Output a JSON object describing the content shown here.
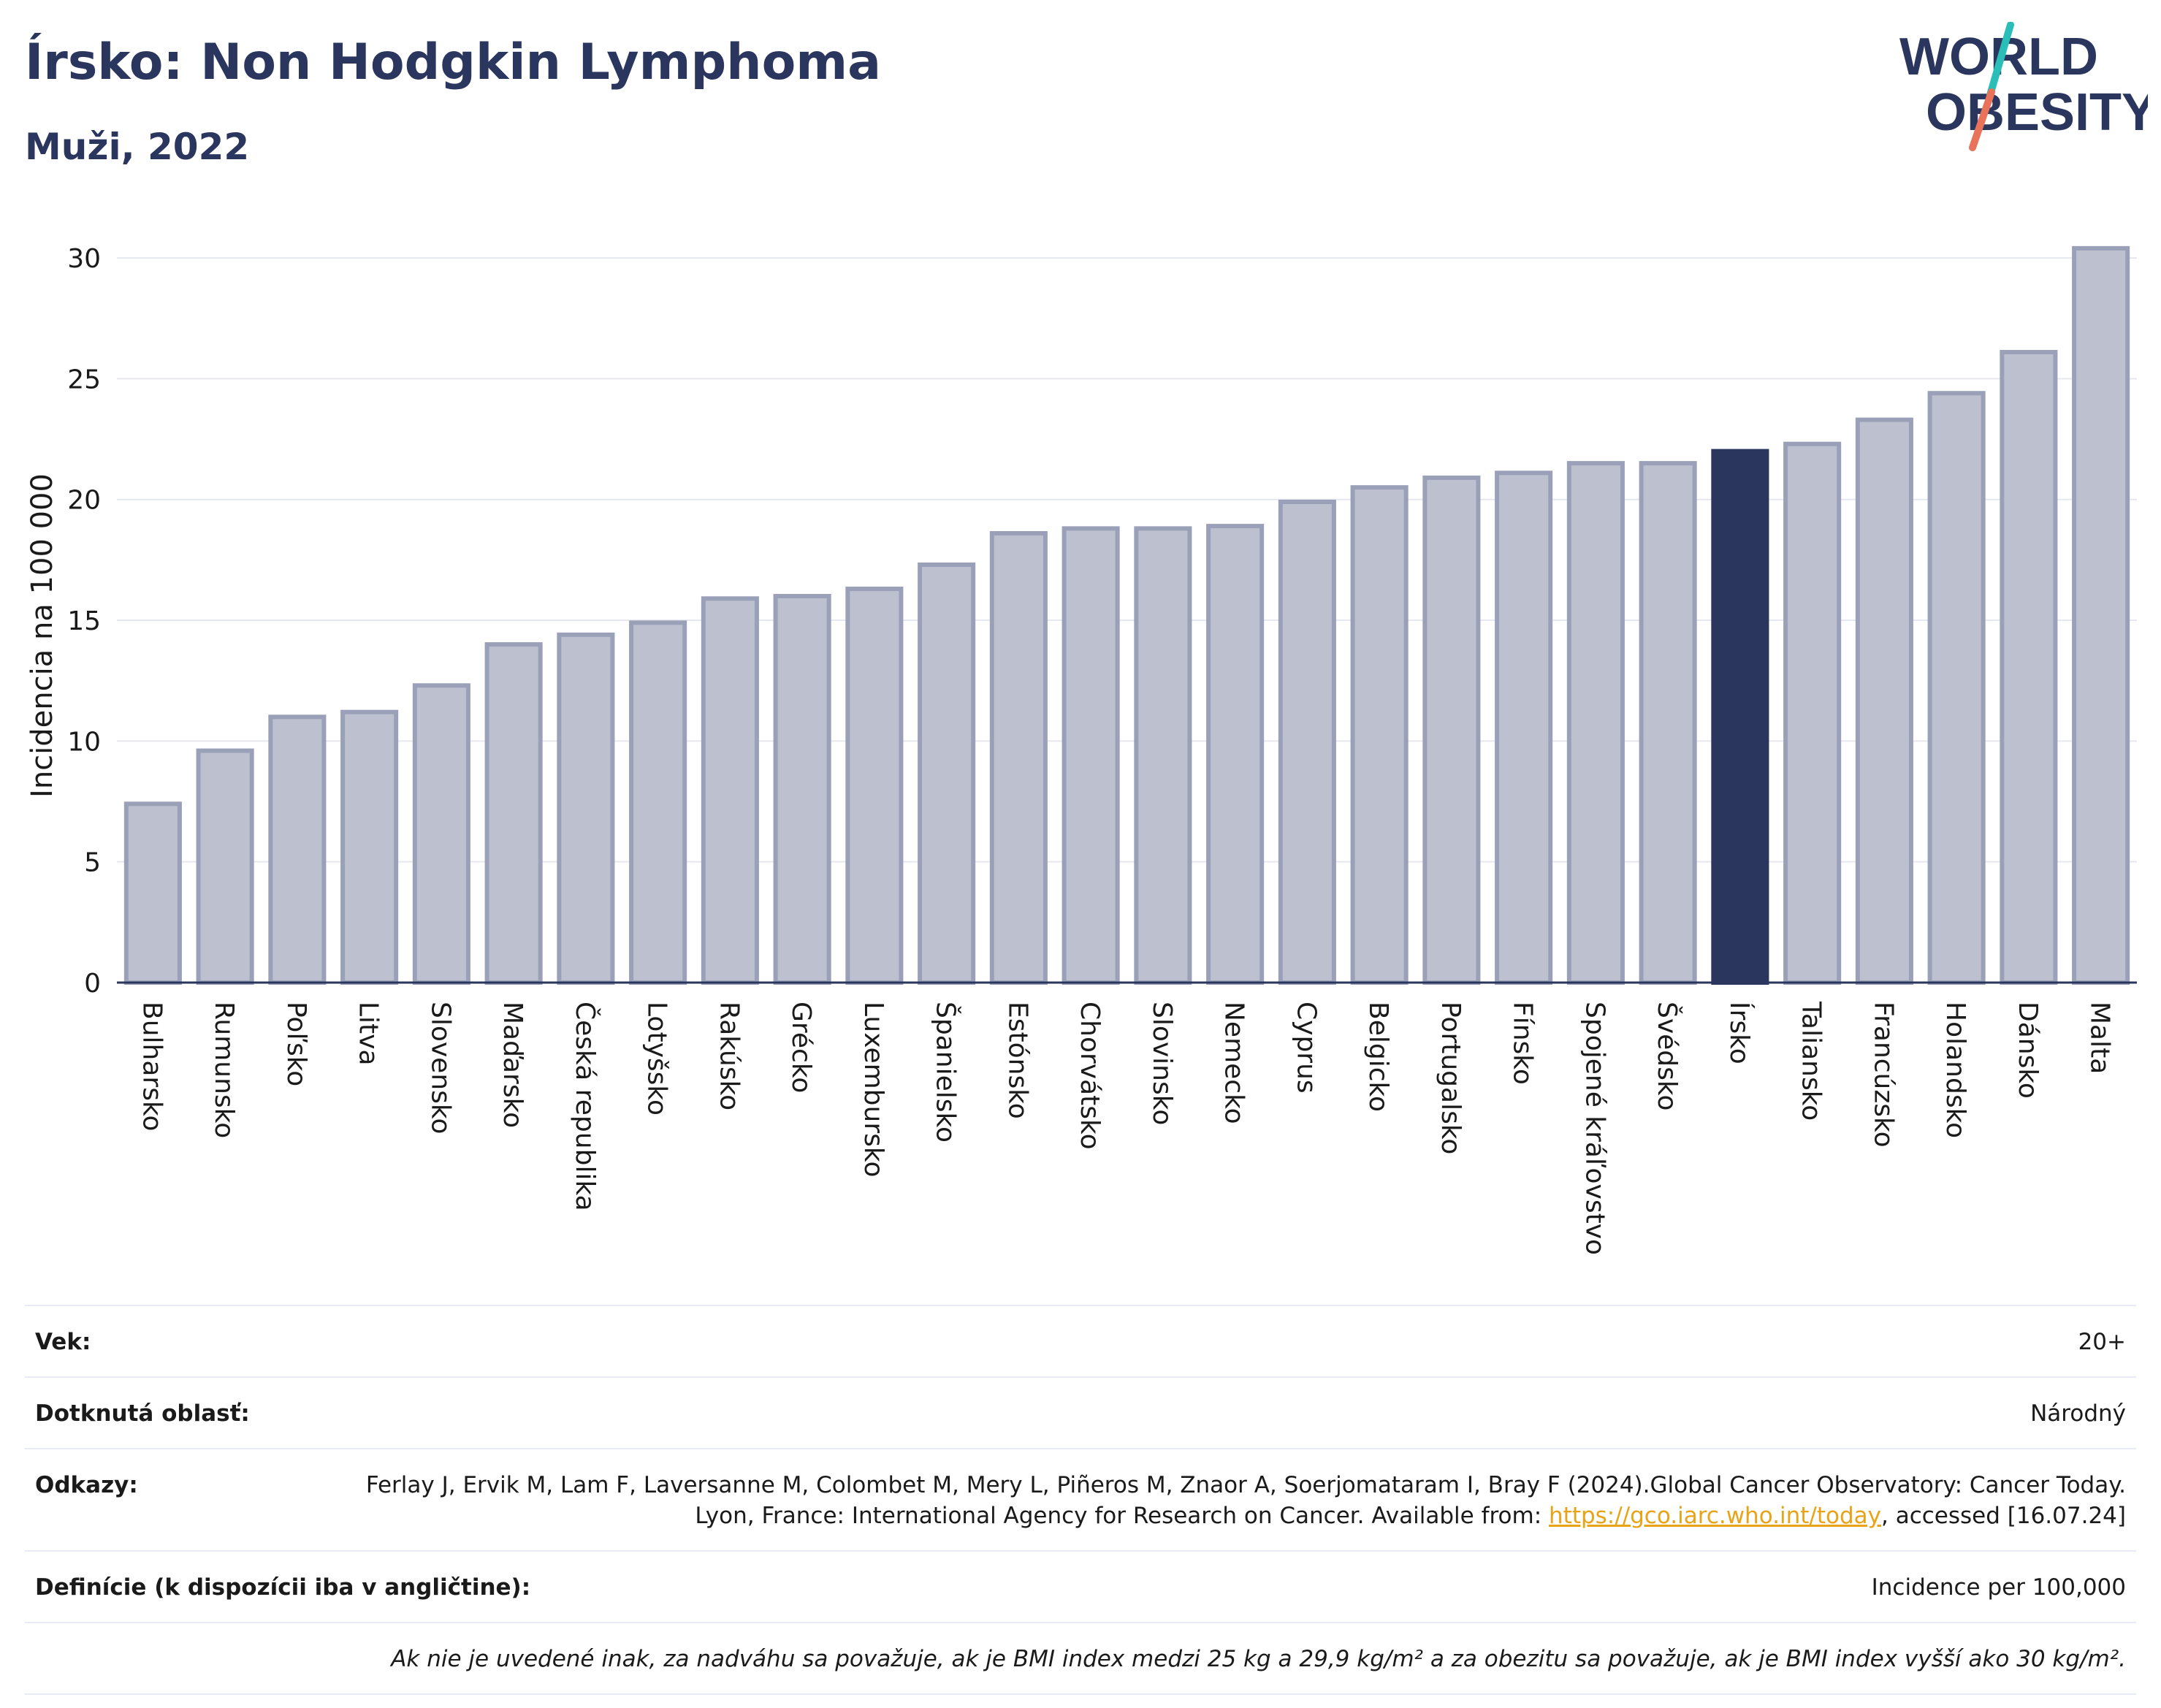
{
  "header": {
    "title": "Írsko: Non Hodgkin Lymphoma",
    "subtitle": "Muži, 2022"
  },
  "logo": {
    "line1": "WORLD",
    "line2": "OBESITY",
    "colors": {
      "text": "#2b365e",
      "slash_teal": "#2bbdb8",
      "slash_coral": "#e8735a"
    }
  },
  "colors": {
    "bar_fill": "#bcc0cf",
    "bar_stroke": "#9aa0b8",
    "highlight": "#2b365e",
    "grid": "#e6e8ef",
    "axis": "#2b365e"
  },
  "chart_data": {
    "type": "bar",
    "ylabel": "Incidencia na 100 000",
    "ylim": [
      0,
      31
    ],
    "yticks": [
      0,
      5,
      10,
      15,
      20,
      25,
      30
    ],
    "grid": true,
    "highlight": "Írsko",
    "categories": [
      "Bulharsko",
      "Rumunsko",
      "Poľsko",
      "Litva",
      "Slovensko",
      "Maďarsko",
      "Česká republika",
      "Lotyšsko",
      "Rakúsko",
      "Grécko",
      "Luxembursko",
      "Španielsko",
      "Estónsko",
      "Chorvátsko",
      "Slovinsko",
      "Nemecko",
      "Cyprus",
      "Belgicko",
      "Portugalsko",
      "Fínsko",
      "Spojené kráľovstvo",
      "Švédsko",
      "Írsko",
      "Taliansko",
      "Francúzsko",
      "Holandsko",
      "Dánsko",
      "Malta"
    ],
    "values": [
      7.4,
      9.6,
      11.0,
      11.2,
      12.3,
      14.0,
      14.4,
      14.9,
      15.9,
      16.0,
      16.3,
      17.3,
      18.6,
      18.8,
      18.8,
      18.9,
      19.9,
      20.5,
      20.9,
      21.1,
      21.5,
      21.5,
      22.0,
      22.3,
      23.3,
      24.4,
      26.1,
      30.4
    ]
  },
  "info": {
    "age_label": "Vek:",
    "age_value": "20+",
    "area_label": "Dotknutá oblasť:",
    "area_value": "Národný",
    "refs_label": "Odkazy:",
    "refs_text": "Ferlay J, Ervik M, Lam F, Laversanne M, Colombet M, Mery L, Piñeros M, Znaor A, Soerjomataram I, Bray F (2024).Global Cancer Observatory: Cancer Today. Lyon, France: International Agency for Research on Cancer. Available from:",
    "refs_link": "https://gco.iarc.who.int/today",
    "refs_tail": ", accessed [16.07.24]",
    "def_label": "Definície (k dispozícii iba v angličtine):",
    "def_value": "Incidence per 100,000",
    "note": "Ak nie je uvedené inak, za nadváhu sa považuje, ak je BMI index medzi 25 kg a 29,9 kg/m² a za obezitu sa považuje, ak je BMI index vyšší ako 30 kg/m²."
  }
}
